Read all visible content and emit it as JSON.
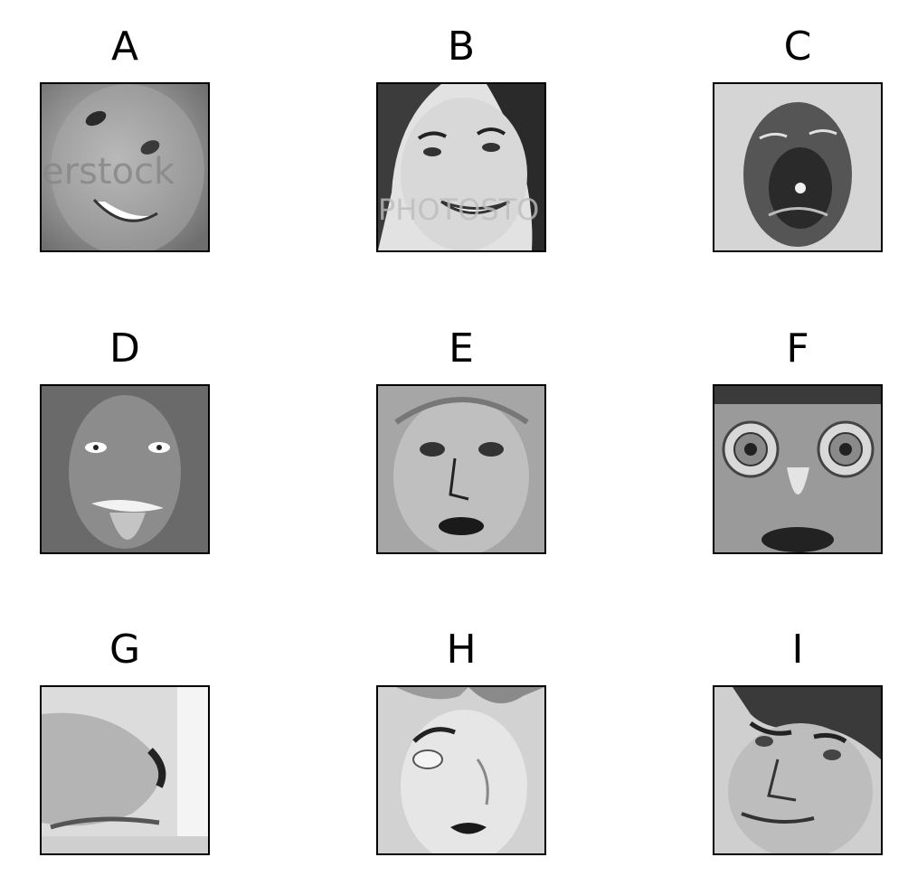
{
  "panels": [
    {
      "label": "A"
    },
    {
      "label": "B"
    },
    {
      "label": "C"
    },
    {
      "label": "D"
    },
    {
      "label": "E"
    },
    {
      "label": "F"
    },
    {
      "label": "G"
    },
    {
      "label": "H"
    },
    {
      "label": "I"
    }
  ],
  "watermarks": {
    "a": "erstock",
    "b": "PHOTOSTO"
  },
  "colors": {
    "frame": "#000000",
    "background": "#ffffff"
  }
}
